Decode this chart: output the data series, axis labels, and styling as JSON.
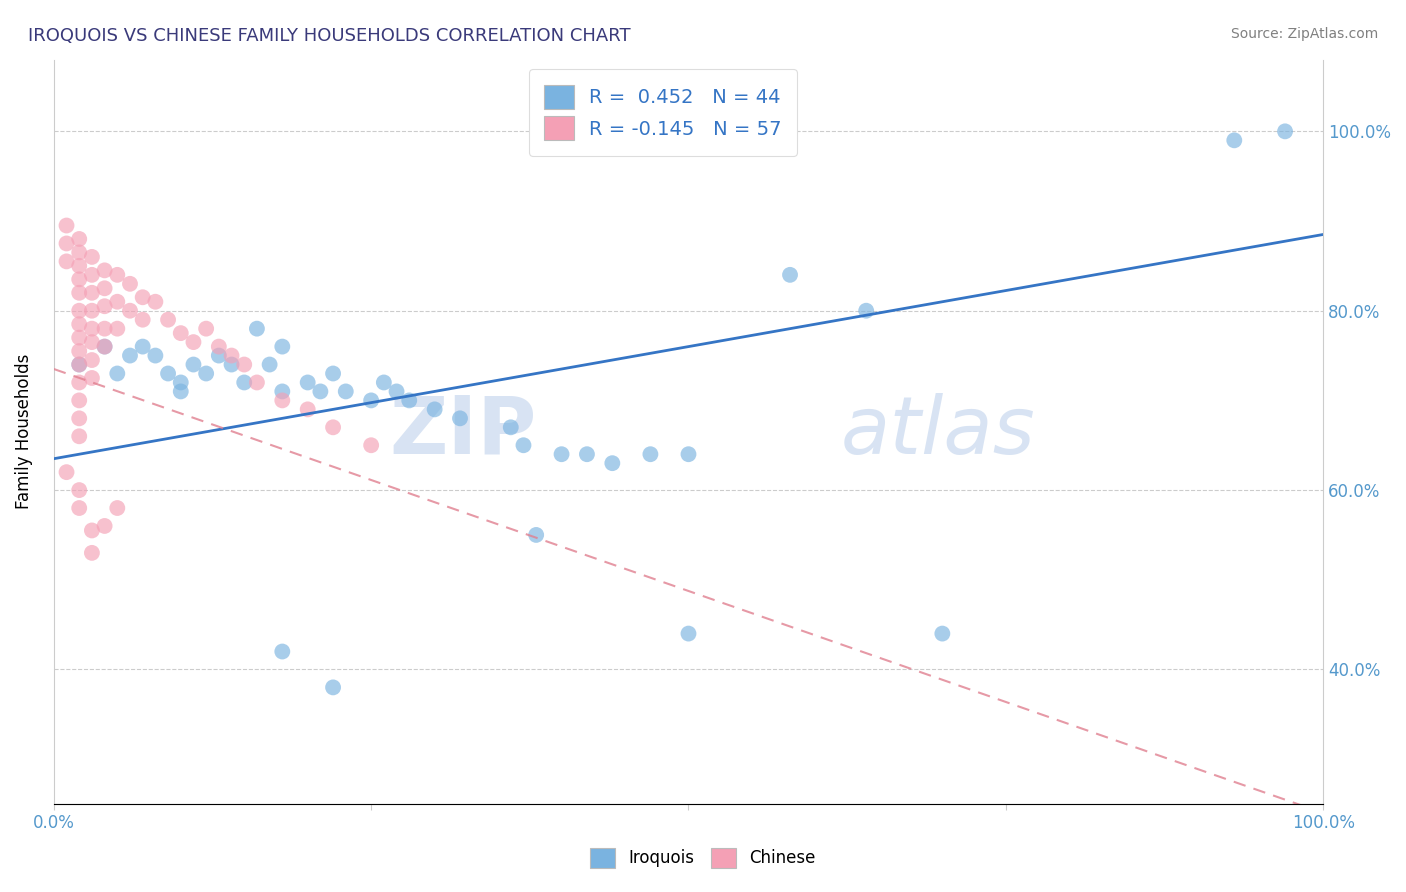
{
  "title": "IROQUOIS VS CHINESE FAMILY HOUSEHOLDS CORRELATION CHART",
  "source": "Source: ZipAtlas.com",
  "ylabel": "Family Households",
  "xlim": [
    0,
    1.0
  ],
  "ylim": [
    0.25,
    1.08
  ],
  "y_ticks": [
    0.4,
    0.6,
    0.8,
    1.0
  ],
  "y_tick_labels": [
    "40.0%",
    "60.0%",
    "80.0%",
    "100.0%"
  ],
  "iroquois_color": "#7ab3e0",
  "chinese_color": "#f4a0b5",
  "iroquois_line_color": "#3575c5",
  "chinese_line_color": "#e08090",
  "watermark_zip": "ZIP",
  "watermark_atlas": "atlas",
  "iroquois_points": [
    [
      0.02,
      0.74
    ],
    [
      0.04,
      0.76
    ],
    [
      0.05,
      0.73
    ],
    [
      0.06,
      0.75
    ],
    [
      0.07,
      0.76
    ],
    [
      0.08,
      0.75
    ],
    [
      0.09,
      0.73
    ],
    [
      0.1,
      0.72
    ],
    [
      0.1,
      0.71
    ],
    [
      0.11,
      0.74
    ],
    [
      0.12,
      0.73
    ],
    [
      0.13,
      0.75
    ],
    [
      0.14,
      0.74
    ],
    [
      0.15,
      0.72
    ],
    [
      0.16,
      0.78
    ],
    [
      0.17,
      0.74
    ],
    [
      0.18,
      0.76
    ],
    [
      0.18,
      0.71
    ],
    [
      0.2,
      0.72
    ],
    [
      0.21,
      0.71
    ],
    [
      0.22,
      0.73
    ],
    [
      0.23,
      0.71
    ],
    [
      0.25,
      0.7
    ],
    [
      0.26,
      0.72
    ],
    [
      0.27,
      0.71
    ],
    [
      0.28,
      0.7
    ],
    [
      0.3,
      0.69
    ],
    [
      0.32,
      0.68
    ],
    [
      0.36,
      0.67
    ],
    [
      0.37,
      0.65
    ],
    [
      0.4,
      0.64
    ],
    [
      0.42,
      0.64
    ],
    [
      0.44,
      0.63
    ],
    [
      0.47,
      0.64
    ],
    [
      0.5,
      0.64
    ],
    [
      0.58,
      0.84
    ],
    [
      0.64,
      0.8
    ],
    [
      0.18,
      0.42
    ],
    [
      0.22,
      0.38
    ],
    [
      0.38,
      0.55
    ],
    [
      0.5,
      0.44
    ],
    [
      0.7,
      0.44
    ],
    [
      0.93,
      0.99
    ],
    [
      0.97,
      1.0
    ]
  ],
  "chinese_points": [
    [
      0.01,
      0.875
    ],
    [
      0.01,
      0.855
    ],
    [
      0.01,
      0.895
    ],
    [
      0.02,
      0.88
    ],
    [
      0.02,
      0.865
    ],
    [
      0.02,
      0.85
    ],
    [
      0.02,
      0.835
    ],
    [
      0.02,
      0.82
    ],
    [
      0.02,
      0.8
    ],
    [
      0.02,
      0.785
    ],
    [
      0.02,
      0.77
    ],
    [
      0.02,
      0.755
    ],
    [
      0.02,
      0.74
    ],
    [
      0.02,
      0.72
    ],
    [
      0.02,
      0.7
    ],
    [
      0.02,
      0.68
    ],
    [
      0.02,
      0.66
    ],
    [
      0.03,
      0.86
    ],
    [
      0.03,
      0.84
    ],
    [
      0.03,
      0.82
    ],
    [
      0.03,
      0.8
    ],
    [
      0.03,
      0.78
    ],
    [
      0.03,
      0.765
    ],
    [
      0.03,
      0.745
    ],
    [
      0.03,
      0.725
    ],
    [
      0.04,
      0.845
    ],
    [
      0.04,
      0.825
    ],
    [
      0.04,
      0.805
    ],
    [
      0.04,
      0.78
    ],
    [
      0.04,
      0.76
    ],
    [
      0.05,
      0.84
    ],
    [
      0.05,
      0.81
    ],
    [
      0.05,
      0.78
    ],
    [
      0.06,
      0.83
    ],
    [
      0.06,
      0.8
    ],
    [
      0.07,
      0.815
    ],
    [
      0.07,
      0.79
    ],
    [
      0.08,
      0.81
    ],
    [
      0.09,
      0.79
    ],
    [
      0.1,
      0.775
    ],
    [
      0.11,
      0.765
    ],
    [
      0.12,
      0.78
    ],
    [
      0.13,
      0.76
    ],
    [
      0.14,
      0.75
    ],
    [
      0.15,
      0.74
    ],
    [
      0.16,
      0.72
    ],
    [
      0.18,
      0.7
    ],
    [
      0.2,
      0.69
    ],
    [
      0.22,
      0.67
    ],
    [
      0.25,
      0.65
    ],
    [
      0.01,
      0.62
    ],
    [
      0.02,
      0.6
    ],
    [
      0.02,
      0.58
    ],
    [
      0.03,
      0.555
    ],
    [
      0.03,
      0.53
    ],
    [
      0.04,
      0.56
    ],
    [
      0.05,
      0.58
    ]
  ],
  "iroquois_line": [
    0.0,
    0.635,
    1.0,
    0.885
  ],
  "chinese_line": [
    0.0,
    0.735,
    1.0,
    0.24
  ]
}
